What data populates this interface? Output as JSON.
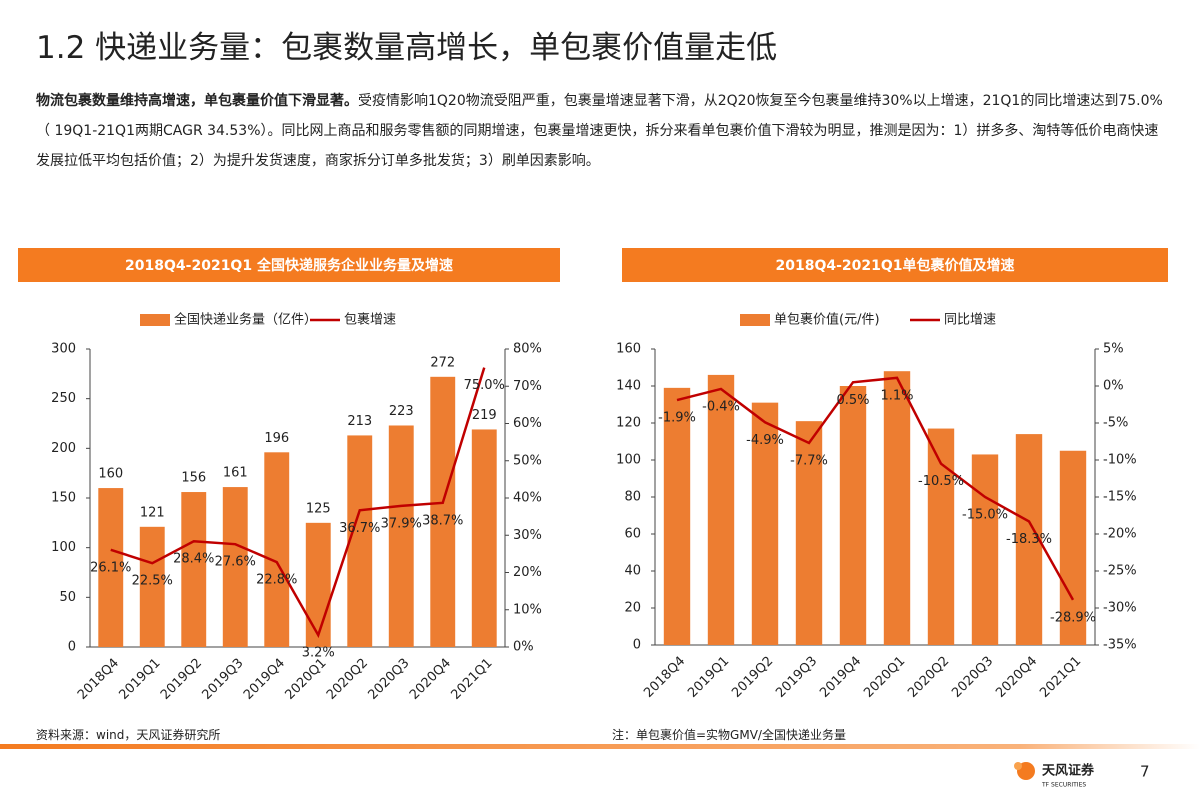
{
  "header": {
    "title": "1.2 快递业务量：包裹数量高增长，单包裹价值量走低"
  },
  "paragraph": {
    "lead": "物流包裹数量维持高增速，单包裹量价值下滑显著。",
    "body": "受疫情影响1Q20物流受阻严重，包裹量增速显著下滑，从2Q20恢复至今包裹量维持30%以上增速，21Q1的同比增速达到75.0%（ 19Q1-21Q1两期CAGR 34.53%）。同比网上商品和服务零售额的同期增速，包裹量增速更快，拆分来看单包裹价值下滑较为明显，推测是因为：1）拼多多、淘特等低价电商快速发展拉低平均包括价值；2）为提升发货速度，商家拆分订单多批发货；3）刷单因素影响。"
  },
  "notes": [
    "资料来源：wind，天风证券研究所",
    "注：单包裹价值=实物GMV/全国快递业务量"
  ],
  "footer": {
    "brand": "天风证券",
    "brand_en": "TF SECURITIES",
    "page": "7"
  },
  "chart_data": [
    {
      "type": "bar",
      "title": "2018Q4-2021Q1 全国快递服务企业业务量及增速",
      "categories": [
        "2018Q4",
        "2019Q1",
        "2019Q2",
        "2019Q3",
        "2019Q4",
        "2020Q1",
        "2020Q2",
        "2020Q3",
        "2020Q4",
        "2021Q1"
      ],
      "series": [
        {
          "name": "全国快递业务量（亿件）",
          "type": "bar",
          "color": "#ed7d31",
          "values": [
            160,
            121,
            156,
            161,
            196,
            125,
            213,
            223,
            272,
            219
          ],
          "show_labels": true
        },
        {
          "name": "包裹增速",
          "type": "line",
          "axis": "y2",
          "color": "#c00000",
          "values": [
            26.1,
            22.5,
            28.4,
            27.6,
            22.8,
            3.2,
            36.7,
            37.9,
            38.7,
            75.0
          ],
          "value_labels": [
            "26.1%",
            "22.5%",
            "28.4%",
            "27.6%",
            "22.8%",
            "3.2%",
            "36.7%",
            "37.9%",
            "38.7%",
            "75.0%"
          ]
        }
      ],
      "ylim": [
        0,
        300
      ],
      "yticks": [
        0,
        50,
        100,
        150,
        200,
        250,
        300
      ],
      "y2lim": [
        0,
        80
      ],
      "y2ticks": [
        {
          "value": 0,
          "label": "0%"
        },
        {
          "value": 10,
          "label": "10%"
        },
        {
          "value": 20,
          "label": "20%"
        },
        {
          "value": 30,
          "label": "30%"
        },
        {
          "value": 40,
          "label": "40%"
        },
        {
          "value": 50,
          "label": "50%"
        },
        {
          "value": 60,
          "label": "60%"
        },
        {
          "value": 70,
          "label": "70%"
        },
        {
          "value": 80,
          "label": "80%"
        }
      ],
      "grid": false
    },
    {
      "type": "bar",
      "title": "2018Q4-2021Q1单包裹价值及增速",
      "categories": [
        "2018Q4",
        "2019Q1",
        "2019Q2",
        "2019Q3",
        "2019Q4",
        "2020Q1",
        "2020Q2",
        "2020Q3",
        "2020Q4",
        "2021Q1"
      ],
      "series": [
        {
          "name": "单包裹价值(元/件)",
          "type": "bar",
          "color": "#ed7d31",
          "values": [
            139,
            146,
            131,
            121,
            140,
            148,
            117,
            103,
            114,
            105
          ],
          "show_labels": false
        },
        {
          "name": "同比增速",
          "type": "line",
          "axis": "y2",
          "color": "#c00000",
          "values": [
            -1.9,
            -0.4,
            -4.9,
            -7.7,
            0.5,
            1.1,
            -10.5,
            -15.0,
            -18.3,
            -28.9
          ],
          "value_labels": [
            "-1.9%",
            "-0.4%",
            "-4.9%",
            "-7.7%",
            "0.5%",
            "1.1%",
            "-10.5%",
            "-15.0%",
            "-18.3%",
            "-28.9%"
          ]
        }
      ],
      "ylim": [
        0,
        160
      ],
      "yticks": [
        0,
        20,
        40,
        60,
        80,
        100,
        120,
        140,
        160
      ],
      "y2lim": [
        -35,
        5
      ],
      "y2ticks": [
        {
          "value": 5,
          "label": "5%"
        },
        {
          "value": 0,
          "label": "0%"
        },
        {
          "value": -5,
          "label": "-5%"
        },
        {
          "value": -10,
          "label": "-10%"
        },
        {
          "value": -15,
          "label": "-15%"
        },
        {
          "value": -20,
          "label": "-20%"
        },
        {
          "value": -25,
          "label": "-25%"
        },
        {
          "value": -30,
          "label": "-30%"
        },
        {
          "value": -35,
          "label": "-35%"
        }
      ],
      "grid": false
    }
  ]
}
